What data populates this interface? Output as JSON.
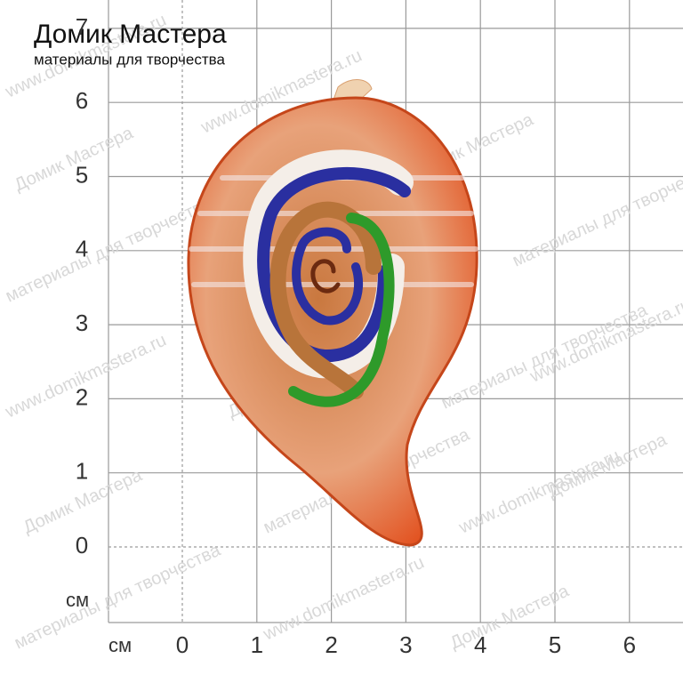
{
  "brand": {
    "title": "Домик Мастера",
    "subtitle": "материалы для творчества"
  },
  "ruler": {
    "x_unit": "см",
    "y_unit": "см",
    "x_ticks": [
      0,
      1,
      2,
      3,
      4,
      5,
      6
    ],
    "y_ticks": [
      0,
      1,
      2,
      3,
      4,
      5,
      6,
      7
    ]
  },
  "watermarks": [
    "www.domikmastera.ru",
    "Домик Мастера",
    "материалы для творчества"
  ]
}
